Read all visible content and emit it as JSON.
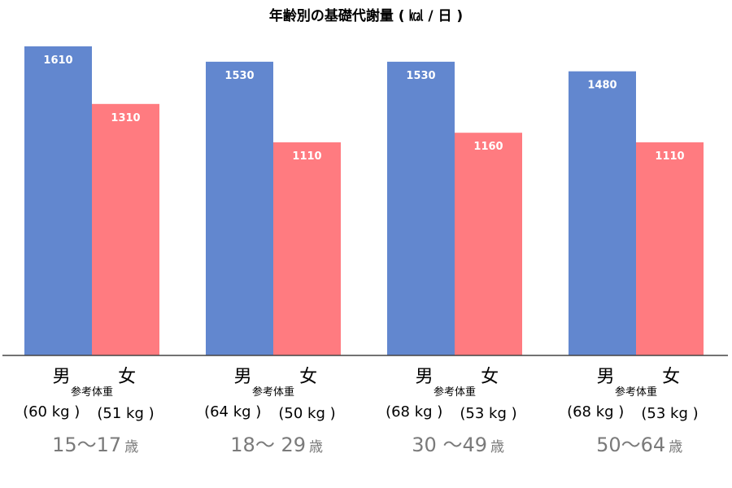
{
  "chart_data": {
    "type": "bar",
    "title": "年齢別の基礎代謝量 ( ㎉ / 日 )",
    "categories": [
      "15～17",
      "18～ 29",
      "30 ～49",
      "50～64"
    ],
    "age_unit": "歳",
    "series": [
      {
        "name": "男",
        "color": "#6287cf",
        "values": [
          1610,
          1530,
          1530,
          1480
        ],
        "weights": [
          "(60 kg )",
          "(64 kg )",
          "(68 kg )",
          "(68 kg )"
        ]
      },
      {
        "name": "女",
        "color": "#ff7b80",
        "values": [
          1310,
          1110,
          1160,
          1110
        ],
        "weights": [
          "(51 kg )",
          "(50 kg )",
          "(53 kg )",
          "(53 kg )"
        ]
      }
    ],
    "reference_label": "参考体重",
    "ylim": [
      0,
      1700
    ],
    "grid": false,
    "legend": "none"
  }
}
